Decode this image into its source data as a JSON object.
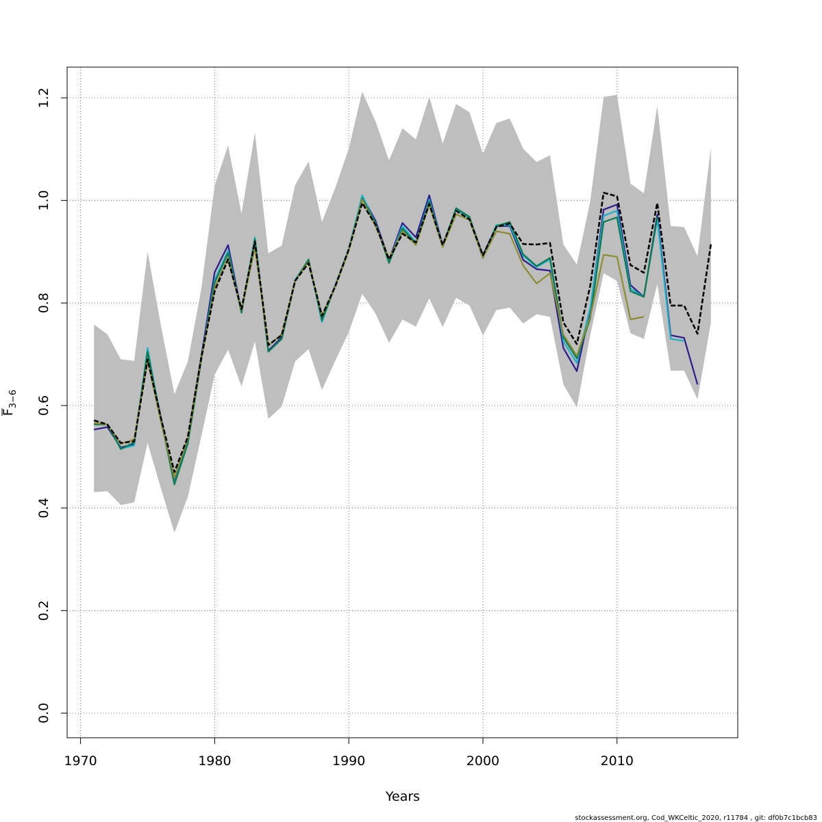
{
  "chart_data": {
    "type": "line",
    "title": "",
    "xlabel": "Years",
    "ylabel": {
      "main": "F",
      "subscript": "3−6"
    },
    "xlim": [
      1969,
      2019
    ],
    "ylim": [
      -0.048,
      1.26
    ],
    "x_ticks": [
      1970,
      1980,
      1990,
      2000,
      2010
    ],
    "x_tick_labels": [
      "1970",
      "1980",
      "1990",
      "2000",
      "2010"
    ],
    "y_ticks": [
      0.0,
      0.2,
      0.4,
      0.6,
      0.8,
      1.0,
      1.2
    ],
    "y_tick_labels": [
      "0.0",
      "0.2",
      "0.4",
      "0.6",
      "0.8",
      "1.0",
      "1.2"
    ],
    "grid": true,
    "band": {
      "name": "confidence-interval",
      "color": "#bebebe",
      "x": [
        1971,
        1972,
        1973,
        1974,
        1975,
        1976,
        1977,
        1978,
        1979,
        1980,
        1981,
        1982,
        1983,
        1984,
        1985,
        1986,
        1987,
        1988,
        1989,
        1990,
        1991,
        1992,
        1993,
        1994,
        1995,
        1996,
        1997,
        1998,
        1999,
        2000,
        2001,
        2002,
        2003,
        2004,
        2005,
        2006,
        2007,
        2008,
        2009,
        2010,
        2011,
        2012,
        2013,
        2014,
        2015,
        2016,
        2017
      ],
      "upper": [
        0.758,
        0.739,
        0.69,
        0.687,
        0.9,
        0.755,
        0.622,
        0.686,
        0.827,
        1.029,
        1.107,
        0.974,
        1.132,
        0.897,
        0.912,
        1.03,
        1.076,
        0.958,
        1.025,
        1.101,
        1.212,
        1.154,
        1.078,
        1.141,
        1.119,
        1.202,
        1.111,
        1.188,
        1.172,
        1.091,
        1.151,
        1.16,
        1.101,
        1.075,
        1.088,
        0.914,
        0.875,
        0.998,
        1.202,
        1.206,
        1.033,
        1.014,
        1.184,
        0.95,
        0.948,
        0.891,
        1.103
      ],
      "lower": [
        0.431,
        0.433,
        0.406,
        0.411,
        0.527,
        0.438,
        0.352,
        0.422,
        0.539,
        0.66,
        0.709,
        0.637,
        0.725,
        0.574,
        0.598,
        0.686,
        0.71,
        0.63,
        0.688,
        0.743,
        0.818,
        0.779,
        0.722,
        0.768,
        0.754,
        0.809,
        0.753,
        0.81,
        0.795,
        0.737,
        0.786,
        0.791,
        0.76,
        0.778,
        0.773,
        0.641,
        0.596,
        0.737,
        0.858,
        0.843,
        0.741,
        0.73,
        0.837,
        0.668,
        0.668,
        0.612,
        0.762
      ]
    },
    "series": [
      {
        "name": "run-navy",
        "color": "#2a1a8e",
        "dash": "",
        "width": 2.2,
        "x": [
          1971,
          1972,
          1973,
          1974,
          1975,
          1976,
          1977,
          1978,
          1979,
          1980,
          1981,
          1982,
          1983,
          1984,
          1985,
          1986,
          1987,
          1988,
          1989,
          1990,
          1991,
          1992,
          1993,
          1994,
          1995,
          1996,
          1997,
          1998,
          1999,
          2000,
          2001,
          2002,
          2003,
          2004,
          2005,
          2006,
          2007,
          2008,
          2009,
          2010,
          2011,
          2012,
          2013,
          2014,
          2015,
          2016
        ],
        "values": [
          0.553,
          0.558,
          0.518,
          0.525,
          0.705,
          0.575,
          0.45,
          0.535,
          0.695,
          0.86,
          0.913,
          0.783,
          0.925,
          0.707,
          0.733,
          0.845,
          0.883,
          0.767,
          0.835,
          0.905,
          1.008,
          0.96,
          0.884,
          0.956,
          0.928,
          1.01,
          0.913,
          0.982,
          0.966,
          0.893,
          0.95,
          0.95,
          0.884,
          0.866,
          0.863,
          0.712,
          0.667,
          0.786,
          0.982,
          0.992,
          0.835,
          0.812,
          0.972,
          0.737,
          0.732,
          0.641
        ]
      },
      {
        "name": "run-cyan",
        "color": "#1ab0c8",
        "dash": "",
        "width": 2.2,
        "x": [
          1971,
          1972,
          1973,
          1974,
          1975,
          1976,
          1977,
          1978,
          1979,
          1980,
          1981,
          1982,
          1983,
          1984,
          1985,
          1986,
          1987,
          1988,
          1989,
          1990,
          1991,
          1992,
          1993,
          1994,
          1995,
          1996,
          1997,
          1998,
          1999,
          2000,
          2001,
          2002,
          2003,
          2004,
          2005,
          2006,
          2007,
          2008,
          2009,
          2010,
          2011,
          2012,
          2013,
          2014,
          2015
        ],
        "values": [
          0.565,
          0.563,
          0.516,
          0.522,
          0.712,
          0.57,
          0.448,
          0.528,
          0.69,
          0.845,
          0.902,
          0.781,
          0.928,
          0.705,
          0.73,
          0.845,
          0.883,
          0.763,
          0.835,
          0.905,
          1.01,
          0.955,
          0.88,
          0.95,
          0.918,
          1.002,
          0.912,
          0.982,
          0.966,
          0.887,
          0.952,
          0.952,
          0.892,
          0.87,
          0.885,
          0.725,
          0.683,
          0.79,
          0.97,
          0.98,
          0.828,
          0.812,
          0.964,
          0.73,
          0.726
        ]
      },
      {
        "name": "run-green",
        "color": "#0a7a50",
        "dash": "",
        "width": 2.2,
        "x": [
          1971,
          1972,
          1973,
          1974,
          1975,
          1976,
          1977,
          1978,
          1979,
          1980,
          1981,
          1982,
          1983,
          1984,
          1985,
          1986,
          1987,
          1988,
          1989,
          1990,
          1991,
          1992,
          1993,
          1994,
          1995,
          1996,
          1997,
          1998,
          1999,
          2000,
          2001,
          2002,
          2003,
          2004,
          2005,
          2006,
          2007,
          2008,
          2009,
          2010,
          2011,
          2012,
          2013
        ],
        "values": [
          0.563,
          0.563,
          0.515,
          0.528,
          0.705,
          0.572,
          0.446,
          0.526,
          0.688,
          0.84,
          0.897,
          0.781,
          0.924,
          0.705,
          0.73,
          0.843,
          0.885,
          0.766,
          0.834,
          0.903,
          1.004,
          0.955,
          0.878,
          0.945,
          0.916,
          0.998,
          0.91,
          0.985,
          0.968,
          0.889,
          0.95,
          0.958,
          0.895,
          0.872,
          0.888,
          0.733,
          0.692,
          0.77,
          0.958,
          0.967,
          0.823,
          0.812,
          0.968
        ]
      },
      {
        "name": "run-olive",
        "color": "#8c8c30",
        "dash": "",
        "width": 2.2,
        "x": [
          1971,
          1972,
          1973,
          1974,
          1975,
          1976,
          1977,
          1978,
          1979,
          1980,
          1981,
          1982,
          1983,
          1984,
          1985,
          1986,
          1987,
          1988,
          1989,
          1990,
          1991,
          1992,
          1993,
          1994,
          1995,
          1996,
          1997,
          1998,
          1999,
          2000,
          2001,
          2002,
          2003,
          2004,
          2005,
          2006,
          2007,
          2008,
          2009,
          2010,
          2011,
          2012
        ],
        "values": [
          0.566,
          0.563,
          0.525,
          0.534,
          0.688,
          0.568,
          0.459,
          0.536,
          0.69,
          0.83,
          0.888,
          0.786,
          0.908,
          0.717,
          0.739,
          0.843,
          0.88,
          0.775,
          0.832,
          0.902,
          1.002,
          0.95,
          0.887,
          0.94,
          0.913,
          0.992,
          0.909,
          0.973,
          0.962,
          0.888,
          0.94,
          0.935,
          0.873,
          0.838,
          0.858,
          0.738,
          0.697,
          0.773,
          0.894,
          0.89,
          0.768,
          0.773
        ]
      },
      {
        "name": "run-base-dashed",
        "color": "#000000",
        "dash": "7,3",
        "width": 2.6,
        "x": [
          1971,
          1972,
          1973,
          1974,
          1975,
          1976,
          1977,
          1978,
          1979,
          1980,
          1981,
          1982,
          1983,
          1984,
          1985,
          1986,
          1987,
          1988,
          1989,
          1990,
          1991,
          1992,
          1993,
          1994,
          1995,
          1996,
          1997,
          1998,
          1999,
          2000,
          2001,
          2002,
          2003,
          2004,
          2005,
          2006,
          2007,
          2008,
          2009,
          2010,
          2011,
          2012,
          2013,
          2014,
          2015,
          2016,
          2017
        ],
        "values": [
          0.571,
          0.563,
          0.527,
          0.53,
          0.69,
          0.575,
          0.47,
          0.539,
          0.693,
          0.823,
          0.885,
          0.788,
          0.92,
          0.718,
          0.737,
          0.843,
          0.878,
          0.775,
          0.833,
          0.905,
          0.995,
          0.952,
          0.885,
          0.935,
          0.918,
          0.993,
          0.913,
          0.98,
          0.963,
          0.893,
          0.948,
          0.955,
          0.915,
          0.914,
          0.917,
          0.762,
          0.72,
          0.833,
          1.015,
          1.008,
          0.874,
          0.859,
          0.995,
          0.795,
          0.795,
          0.74,
          0.915
        ]
      }
    ]
  },
  "footer": {
    "text": "stockassessment.org, Cod_WKCeltic_2020, r11784 , git: df0b7c1bcb83"
  }
}
